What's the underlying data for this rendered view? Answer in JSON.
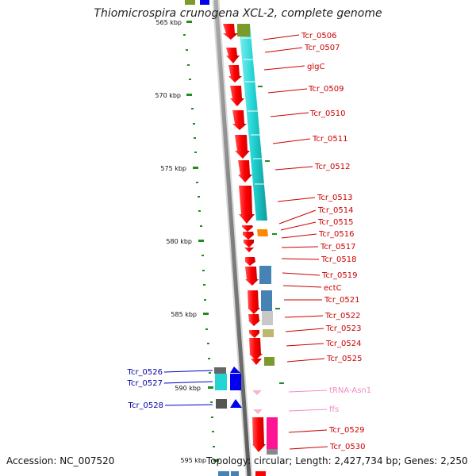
{
  "title": "Thiomicrospira crunogena XCL-2, complete genome",
  "footer": {
    "accession": "Accession: NC_007520",
    "topology": "Topology: circular; Length: 2,427,734 bp; Genes: 2,250"
  },
  "kbp_ticks": [
    "565 kbp",
    "570 kbp",
    "575 kbp",
    "580 kbp",
    "585 kbp",
    "590 kbp",
    "595 kbp"
  ],
  "genes_right": [
    "Tcr_0506",
    "Tcr_0507",
    "glgC",
    "Tcr_0509",
    "Tcr_0510",
    "Tcr_0511",
    "Tcr_0512",
    "Tcr_0513",
    "Tcr_0514",
    "Tcr_0515",
    "Tcr_0516",
    "Tcr_0517",
    "Tcr_0518",
    "Tcr_0519",
    "ectC",
    "Tcr_0521",
    "Tcr_0522",
    "Tcr_0523",
    "Tcr_0524",
    "Tcr_0525",
    "tRNA-Asn1",
    "ffs",
    "Tcr_0529",
    "Tcr_0530"
  ],
  "genes_left": [
    "Tcr_0526",
    "Tcr_0527",
    "Tcr_0528"
  ],
  "colors": {
    "gene_red": "#ff0000",
    "cyan": "#22d4d4",
    "olive": "#7a9a2a",
    "orange": "#ff8800",
    "steel_blue": "#4682b4",
    "blue": "#0000ee",
    "magenta": "#ff1493",
    "pink": "#f7b5d5",
    "backbone": "#808080",
    "tick_green": "#228b22"
  }
}
